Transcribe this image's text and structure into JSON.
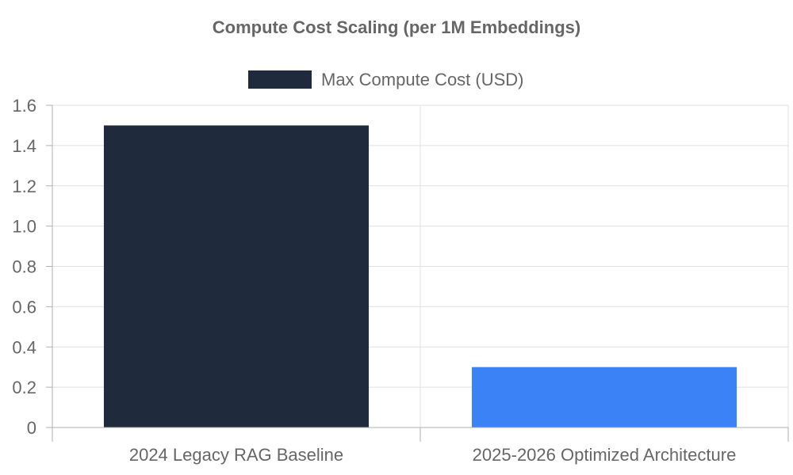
{
  "chart_data": {
    "type": "bar",
    "title": "Compute Cost Scaling (per 1M Embeddings)",
    "categories": [
      "2024 Legacy RAG Baseline",
      "2025-2026 Optimized Architecture"
    ],
    "series": [
      {
        "name": "Max Compute Cost (USD)",
        "values": [
          1.5,
          0.3
        ],
        "colors": [
          "#1f2a3c",
          "#3b82f6"
        ]
      }
    ],
    "ylim": [
      0,
      1.6
    ],
    "yticks": [
      "0",
      "0.2",
      "0.4",
      "0.6",
      "0.8",
      "1.0",
      "1.2",
      "1.4",
      "1.6"
    ],
    "ytick_values": [
      0,
      0.2,
      0.4,
      0.6,
      0.8,
      1.0,
      1.2,
      1.4,
      1.6
    ],
    "grid": true,
    "legend_position": "top-center",
    "legend_swatch_color": "#1f2a3c"
  }
}
